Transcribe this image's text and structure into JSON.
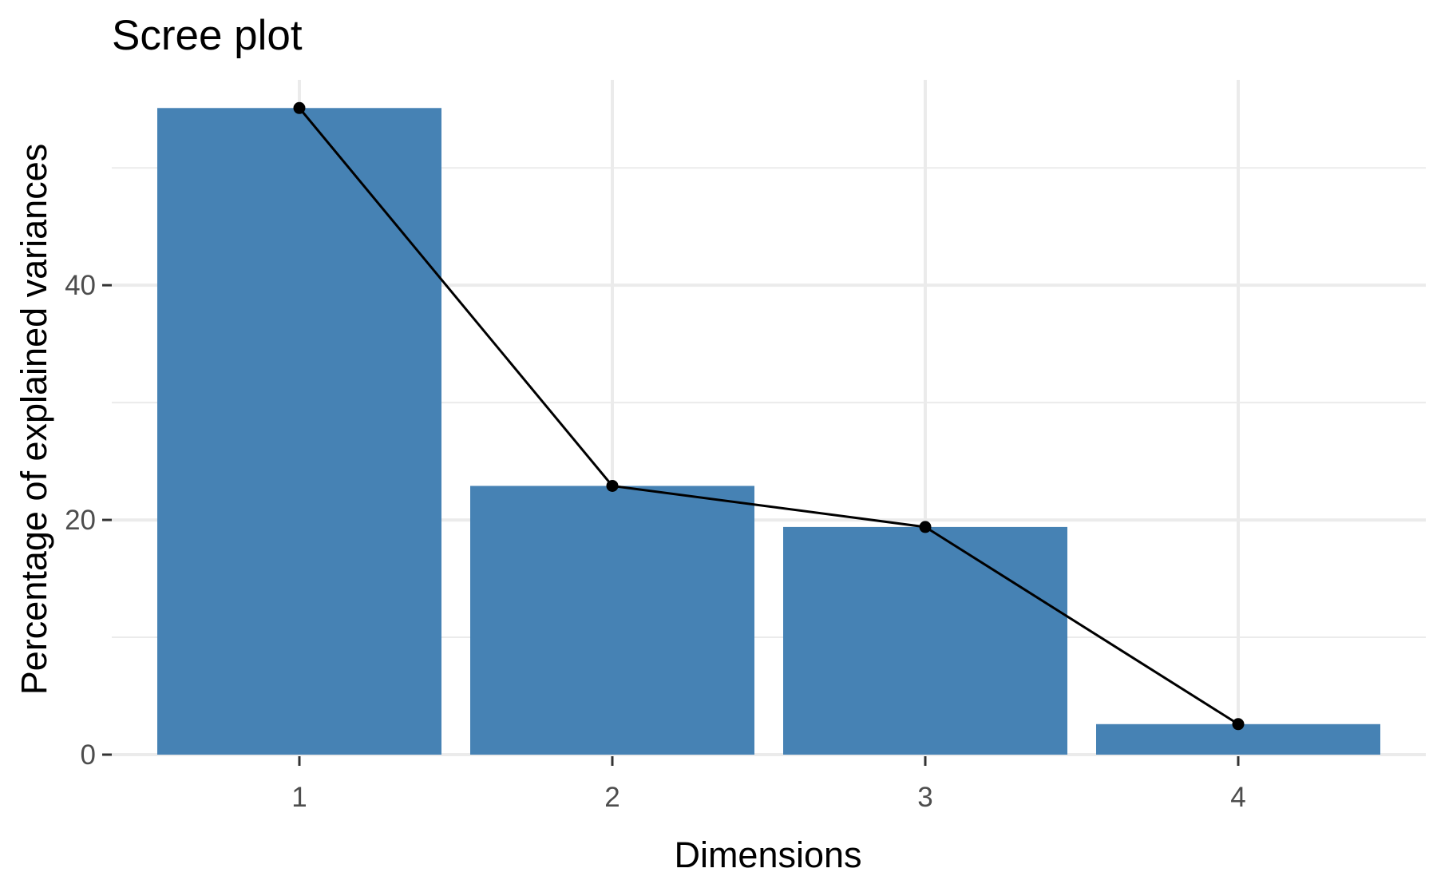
{
  "chart_data": {
    "type": "bar",
    "title": "Scree plot",
    "xlabel": "Dimensions",
    "ylabel": "Percentage of explained variances",
    "categories": [
      "1",
      "2",
      "3",
      "4"
    ],
    "values": [
      55.1,
      22.9,
      19.4,
      2.6
    ],
    "line_overlay": true,
    "ylim": [
      0,
      57.5
    ],
    "y_ticks": [
      0,
      20,
      40
    ],
    "y_minor_ticks": [
      10,
      30,
      50
    ],
    "y_tick_labels": [
      "0",
      "20",
      "40"
    ],
    "grid": true,
    "legend": "none",
    "colors": {
      "bar": "#4682B4",
      "line": "#000000",
      "point": "#000000",
      "grid": "#EBEBEB",
      "background": "#FFFFFF"
    }
  }
}
